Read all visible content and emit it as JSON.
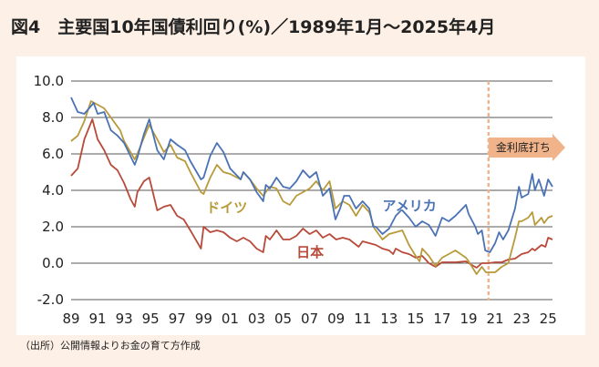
{
  "chart_data": {
    "type": "line",
    "title": "図4　主要国10年国債利回り(%)／1989年1月～2025年4月",
    "source": "（出所）公開情報よりお金の育て方作成",
    "xlabel": "",
    "ylabel": "",
    "x_tick_labels": [
      "89",
      "91",
      "93",
      "95",
      "97",
      "99",
      "01",
      "03",
      "05",
      "07",
      "09",
      "11",
      "13",
      "15",
      "17",
      "19",
      "21",
      "23",
      "25"
    ],
    "x_range": [
      1989,
      2025.33
    ],
    "y_ticks": [
      "10.0",
      "8.0",
      "6.0",
      "4.0",
      "2.0",
      "0.0",
      "-2.0"
    ],
    "ylim": [
      -2,
      10
    ],
    "grid": "horizontal",
    "annotation": {
      "label": "金利底打ち",
      "x": 2020.5
    },
    "colors": {
      "アメリカ": "#4a72b5",
      "ドイツ": "#b89a3a",
      "日本": "#b84a3a",
      "annotation": "#f0b38a",
      "background": "#fdf0e6"
    },
    "series": [
      {
        "name": "アメリカ",
        "points": [
          [
            1989,
            9.1
          ],
          [
            1989.5,
            8.3
          ],
          [
            1990,
            8.2
          ],
          [
            1990.7,
            8.8
          ],
          [
            1991,
            8.2
          ],
          [
            1991.5,
            8.3
          ],
          [
            1992,
            7.3
          ],
          [
            1992.5,
            7.0
          ],
          [
            1993,
            6.6
          ],
          [
            1993.8,
            5.4
          ],
          [
            1994,
            5.8
          ],
          [
            1994.5,
            7.1
          ],
          [
            1994.9,
            7.9
          ],
          [
            1995.5,
            6.2
          ],
          [
            1996,
            5.7
          ],
          [
            1996.5,
            6.8
          ],
          [
            1997,
            6.5
          ],
          [
            1997.6,
            6.2
          ],
          [
            1998,
            5.6
          ],
          [
            1998.8,
            4.6
          ],
          [
            1999,
            4.7
          ],
          [
            1999.5,
            5.9
          ],
          [
            2000,
            6.6
          ],
          [
            2000.5,
            6.1
          ],
          [
            2001,
            5.2
          ],
          [
            2001.8,
            4.6
          ],
          [
            2002,
            5.0
          ],
          [
            2002.5,
            4.6
          ],
          [
            2003,
            3.9
          ],
          [
            2003.5,
            3.4
          ],
          [
            2003.7,
            4.3
          ],
          [
            2004,
            4.1
          ],
          [
            2004.5,
            4.7
          ],
          [
            2005,
            4.2
          ],
          [
            2005.5,
            4.1
          ],
          [
            2006,
            4.5
          ],
          [
            2006.5,
            5.1
          ],
          [
            2007,
            4.7
          ],
          [
            2007.5,
            5.0
          ],
          [
            2008,
            3.7
          ],
          [
            2008.5,
            4.1
          ],
          [
            2008.95,
            2.4
          ],
          [
            2009.3,
            3.0
          ],
          [
            2009.6,
            3.7
          ],
          [
            2010,
            3.7
          ],
          [
            2010.5,
            3.0
          ],
          [
            2011,
            3.4
          ],
          [
            2011.5,
            3.0
          ],
          [
            2011.8,
            2.0
          ],
          [
            2012,
            2.0
          ],
          [
            2012.5,
            1.6
          ],
          [
            2013,
            1.9
          ],
          [
            2013.5,
            2.6
          ],
          [
            2013.9,
            2.9
          ],
          [
            2014,
            2.9
          ],
          [
            2014.5,
            2.5
          ],
          [
            2015,
            2.0
          ],
          [
            2015.5,
            2.3
          ],
          [
            2016,
            2.1
          ],
          [
            2016.5,
            1.5
          ],
          [
            2017,
            2.5
          ],
          [
            2017.5,
            2.3
          ],
          [
            2018,
            2.6
          ],
          [
            2018.8,
            3.2
          ],
          [
            2019,
            2.7
          ],
          [
            2019.5,
            2.0
          ],
          [
            2019.7,
            1.6
          ],
          [
            2020,
            1.8
          ],
          [
            2020.25,
            0.7
          ],
          [
            2020.6,
            0.6
          ],
          [
            2021,
            1.1
          ],
          [
            2021.3,
            1.7
          ],
          [
            2021.6,
            1.3
          ],
          [
            2022,
            1.8
          ],
          [
            2022.5,
            3.0
          ],
          [
            2022.8,
            4.2
          ],
          [
            2023,
            3.6
          ],
          [
            2023.5,
            3.8
          ],
          [
            2023.8,
            4.9
          ],
          [
            2024,
            4.0
          ],
          [
            2024.3,
            4.6
          ],
          [
            2024.7,
            3.7
          ],
          [
            2025,
            4.6
          ],
          [
            2025.33,
            4.2
          ]
        ]
      },
      {
        "name": "ドイツ",
        "points": [
          [
            1989,
            6.7
          ],
          [
            1989.5,
            7.0
          ],
          [
            1990,
            7.8
          ],
          [
            1990.5,
            8.9
          ],
          [
            1991,
            8.7
          ],
          [
            1991.5,
            8.5
          ],
          [
            1992,
            8.0
          ],
          [
            1992.7,
            7.3
          ],
          [
            1993,
            6.7
          ],
          [
            1993.8,
            5.7
          ],
          [
            1994,
            6.0
          ],
          [
            1994.5,
            6.9
          ],
          [
            1994.9,
            7.6
          ],
          [
            1995.5,
            6.8
          ],
          [
            1996,
            6.1
          ],
          [
            1996.5,
            6.5
          ],
          [
            1997,
            5.8
          ],
          [
            1997.6,
            5.6
          ],
          [
            1998,
            5.0
          ],
          [
            1998.8,
            3.9
          ],
          [
            1999,
            3.8
          ],
          [
            1999.5,
            4.7
          ],
          [
            2000,
            5.4
          ],
          [
            2000.5,
            5.0
          ],
          [
            2001,
            4.9
          ],
          [
            2001.8,
            4.6
          ],
          [
            2002,
            5.0
          ],
          [
            2002.5,
            4.6
          ],
          [
            2003,
            4.1
          ],
          [
            2003.5,
            3.7
          ],
          [
            2004,
            4.2
          ],
          [
            2004.5,
            4.1
          ],
          [
            2005,
            3.4
          ],
          [
            2005.5,
            3.2
          ],
          [
            2006,
            3.7
          ],
          [
            2006.5,
            3.9
          ],
          [
            2007,
            4.1
          ],
          [
            2007.5,
            4.5
          ],
          [
            2008,
            4.0
          ],
          [
            2008.5,
            4.5
          ],
          [
            2008.95,
            3.0
          ],
          [
            2009.5,
            3.4
          ],
          [
            2010,
            3.2
          ],
          [
            2010.5,
            2.6
          ],
          [
            2011,
            3.2
          ],
          [
            2011.5,
            2.8
          ],
          [
            2011.9,
            1.9
          ],
          [
            2012,
            1.8
          ],
          [
            2012.5,
            1.3
          ],
          [
            2013,
            1.6
          ],
          [
            2013.5,
            1.7
          ],
          [
            2014,
            1.8
          ],
          [
            2014.5,
            1.0
          ],
          [
            2015,
            0.4
          ],
          [
            2015.3,
            0.1
          ],
          [
            2015.5,
            0.8
          ],
          [
            2016,
            0.4
          ],
          [
            2016.5,
            -0.15
          ],
          [
            2017,
            0.3
          ],
          [
            2017.5,
            0.5
          ],
          [
            2018,
            0.7
          ],
          [
            2018.8,
            0.3
          ],
          [
            2019,
            0.1
          ],
          [
            2019.6,
            -0.6
          ],
          [
            2020,
            -0.2
          ],
          [
            2020.3,
            -0.5
          ],
          [
            2020.7,
            -0.5
          ],
          [
            2021,
            -0.5
          ],
          [
            2021.5,
            -0.2
          ],
          [
            2022,
            0.0
          ],
          [
            2022.5,
            1.4
          ],
          [
            2022.8,
            2.3
          ],
          [
            2023,
            2.3
          ],
          [
            2023.5,
            2.5
          ],
          [
            2023.8,
            2.8
          ],
          [
            2024,
            2.1
          ],
          [
            2024.5,
            2.5
          ],
          [
            2024.7,
            2.2
          ],
          [
            2025,
            2.5
          ],
          [
            2025.33,
            2.6
          ]
        ]
      },
      {
        "name": "日本",
        "points": [
          [
            1989,
            4.8
          ],
          [
            1989.5,
            5.2
          ],
          [
            1990,
            6.8
          ],
          [
            1990.6,
            7.9
          ],
          [
            1991,
            6.8
          ],
          [
            1991.5,
            6.2
          ],
          [
            1992,
            5.4
          ],
          [
            1992.5,
            5.1
          ],
          [
            1993,
            4.4
          ],
          [
            1993.5,
            3.5
          ],
          [
            1993.8,
            3.1
          ],
          [
            1994,
            3.9
          ],
          [
            1994.5,
            4.5
          ],
          [
            1994.9,
            4.7
          ],
          [
            1995,
            4.4
          ],
          [
            1995.5,
            2.9
          ],
          [
            1996,
            3.1
          ],
          [
            1996.5,
            3.2
          ],
          [
            1997,
            2.6
          ],
          [
            1997.5,
            2.4
          ],
          [
            1998,
            1.8
          ],
          [
            1998.8,
            0.8
          ],
          [
            1999,
            2.0
          ],
          [
            1999.5,
            1.7
          ],
          [
            2000,
            1.8
          ],
          [
            2000.5,
            1.7
          ],
          [
            2001,
            1.4
          ],
          [
            2001.5,
            1.2
          ],
          [
            2002,
            1.4
          ],
          [
            2002.5,
            1.2
          ],
          [
            2003,
            0.8
          ],
          [
            2003.5,
            0.6
          ],
          [
            2003.7,
            1.5
          ],
          [
            2004,
            1.3
          ],
          [
            2004.5,
            1.8
          ],
          [
            2005,
            1.3
          ],
          [
            2005.5,
            1.3
          ],
          [
            2006,
            1.5
          ],
          [
            2006.5,
            1.9
          ],
          [
            2007,
            1.6
          ],
          [
            2007.5,
            1.8
          ],
          [
            2008,
            1.4
          ],
          [
            2008.5,
            1.6
          ],
          [
            2009,
            1.3
          ],
          [
            2009.5,
            1.4
          ],
          [
            2010,
            1.3
          ],
          [
            2010.7,
            0.9
          ],
          [
            2011,
            1.2
          ],
          [
            2011.5,
            1.1
          ],
          [
            2012,
            1.0
          ],
          [
            2012.5,
            0.8
          ],
          [
            2013,
            0.7
          ],
          [
            2013.3,
            0.5
          ],
          [
            2013.5,
            0.8
          ],
          [
            2014,
            0.6
          ],
          [
            2014.5,
            0.5
          ],
          [
            2015,
            0.3
          ],
          [
            2015.5,
            0.4
          ],
          [
            2016,
            0.0
          ],
          [
            2016.5,
            -0.2
          ],
          [
            2017,
            0.05
          ],
          [
            2017.5,
            0.05
          ],
          [
            2018,
            0.05
          ],
          [
            2018.8,
            0.1
          ],
          [
            2019,
            0.0
          ],
          [
            2019.6,
            -0.25
          ],
          [
            2020,
            0.0
          ],
          [
            2020.5,
            0.0
          ],
          [
            2021,
            0.05
          ],
          [
            2021.5,
            0.05
          ],
          [
            2022,
            0.2
          ],
          [
            2022.5,
            0.25
          ],
          [
            2023,
            0.5
          ],
          [
            2023.5,
            0.6
          ],
          [
            2023.8,
            0.8
          ],
          [
            2024,
            0.7
          ],
          [
            2024.5,
            1.0
          ],
          [
            2024.8,
            0.9
          ],
          [
            2025,
            1.4
          ],
          [
            2025.33,
            1.3
          ]
        ]
      }
    ]
  }
}
